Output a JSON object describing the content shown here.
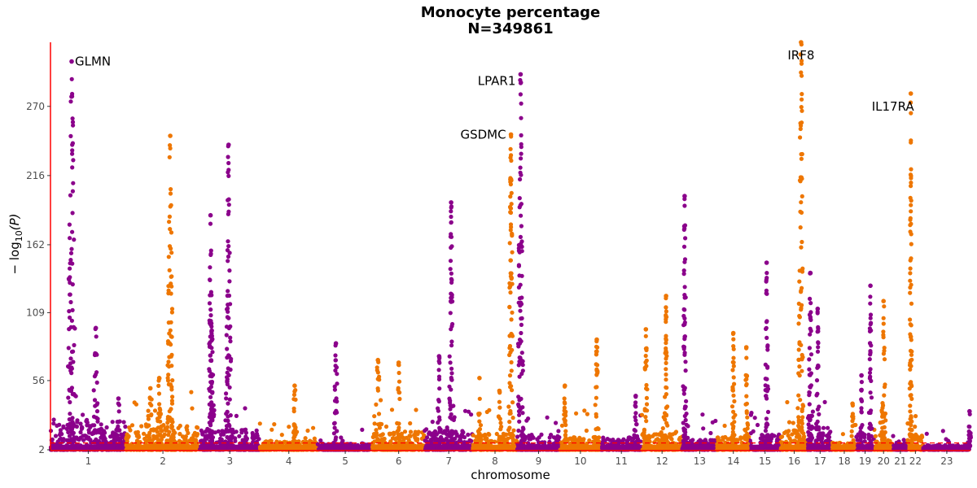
{
  "colors": {
    "odd": "#8b008b",
    "even": "#ee7600",
    "axis": "#ff0000",
    "threshold": "#ff0000"
  },
  "chart_data": {
    "type": "scatter",
    "subtype": "manhattan",
    "title": "Monocyte percentage",
    "subtitle": "N=349861",
    "xlabel": "chromosome",
    "ylabel_prefix": "− log",
    "ylabel_sub": "10",
    "ylabel_suffix": "(P)",
    "ylim": [
      2,
      320
    ],
    "yticks": [
      2,
      56,
      109,
      162,
      216,
      270
    ],
    "threshold": 7.3,
    "grid": false,
    "chromosomes": [
      {
        "label": "1",
        "length": 249,
        "baseline": 26,
        "noise_max": 34
      },
      {
        "label": "2",
        "length": 243,
        "baseline": 22,
        "noise_max": 48
      },
      {
        "label": "3",
        "length": 198,
        "baseline": 18,
        "noise_max": 35
      },
      {
        "label": "4",
        "length": 191,
        "baseline": 9,
        "noise_max": 28
      },
      {
        "label": "5",
        "length": 181,
        "baseline": 7,
        "noise_max": 20
      },
      {
        "label": "6",
        "length": 171,
        "baseline": 16,
        "noise_max": 38
      },
      {
        "label": "7",
        "length": 159,
        "baseline": 18,
        "noise_max": 40
      },
      {
        "label": "8",
        "length": 146,
        "baseline": 15,
        "noise_max": 35
      },
      {
        "label": "9",
        "length": 141,
        "baseline": 14,
        "noise_max": 30
      },
      {
        "label": "10",
        "length": 135,
        "baseline": 12,
        "noise_max": 34
      },
      {
        "label": "11",
        "length": 135,
        "baseline": 12,
        "noise_max": 30
      },
      {
        "label": "12",
        "length": 133,
        "baseline": 16,
        "noise_max": 36
      },
      {
        "label": "13",
        "length": 115,
        "baseline": 10,
        "noise_max": 30
      },
      {
        "label": "14",
        "length": 107,
        "baseline": 12,
        "noise_max": 30
      },
      {
        "label": "15",
        "length": 102,
        "baseline": 14,
        "noise_max": 32
      },
      {
        "label": "16",
        "length": 90,
        "baseline": 18,
        "noise_max": 40
      },
      {
        "label": "17",
        "length": 81,
        "baseline": 20,
        "noise_max": 45
      },
      {
        "label": "18",
        "length": 78,
        "baseline": 8,
        "noise_max": 24
      },
      {
        "label": "19",
        "length": 59,
        "baseline": 14,
        "noise_max": 38
      },
      {
        "label": "20",
        "length": 63,
        "baseline": 16,
        "noise_max": 40
      },
      {
        "label": "21",
        "length": 48,
        "baseline": 8,
        "noise_max": 18
      },
      {
        "label": "22",
        "length": 51,
        "baseline": 14,
        "noise_max": 30
      },
      {
        "label": "23",
        "length": 156,
        "baseline": 6,
        "noise_max": 18
      }
    ],
    "peaks": [
      {
        "chr": "1",
        "pos": 0.28,
        "top": 305,
        "width": 0.018
      },
      {
        "chr": "1",
        "pos": 0.6,
        "top": 97,
        "width": 0.012
      },
      {
        "chr": "1",
        "pos": 0.9,
        "top": 42,
        "width": 0.01
      },
      {
        "chr": "2",
        "pos": 0.33,
        "top": 50,
        "width": 0.02
      },
      {
        "chr": "2",
        "pos": 0.6,
        "top": 247,
        "width": 0.012
      },
      {
        "chr": "2",
        "pos": 0.45,
        "top": 58,
        "width": 0.01
      },
      {
        "chr": "3",
        "pos": 0.18,
        "top": 185,
        "width": 0.008
      },
      {
        "chr": "3",
        "pos": 0.2,
        "top": 95,
        "width": 0.012
      },
      {
        "chr": "3",
        "pos": 0.48,
        "top": 240,
        "width": 0.014
      },
      {
        "chr": "4",
        "pos": 0.6,
        "top": 52,
        "width": 0.015
      },
      {
        "chr": "5",
        "pos": 0.33,
        "top": 85,
        "width": 0.01
      },
      {
        "chr": "6",
        "pos": 0.1,
        "top": 72,
        "width": 0.03
      },
      {
        "chr": "6",
        "pos": 0.5,
        "top": 70,
        "width": 0.01
      },
      {
        "chr": "7",
        "pos": 0.3,
        "top": 75,
        "width": 0.01
      },
      {
        "chr": "7",
        "pos": 0.55,
        "top": 195,
        "width": 0.012
      },
      {
        "chr": "8",
        "pos": 0.15,
        "top": 58,
        "width": 0.01
      },
      {
        "chr": "8",
        "pos": 0.6,
        "top": 48,
        "width": 0.01
      },
      {
        "chr": "8",
        "pos": 0.86,
        "top": 248,
        "width": 0.014
      },
      {
        "chr": "9",
        "pos": 0.08,
        "top": 295,
        "width": 0.018
      },
      {
        "chr": "10",
        "pos": 0.12,
        "top": 52,
        "width": 0.01
      },
      {
        "chr": "10",
        "pos": 0.9,
        "top": 88,
        "width": 0.012
      },
      {
        "chr": "11",
        "pos": 0.85,
        "top": 44,
        "width": 0.01
      },
      {
        "chr": "12",
        "pos": 0.1,
        "top": 96,
        "width": 0.012
      },
      {
        "chr": "12",
        "pos": 0.6,
        "top": 122,
        "width": 0.008
      },
      {
        "chr": "13",
        "pos": 0.07,
        "top": 200,
        "width": 0.012
      },
      {
        "chr": "14",
        "pos": 0.5,
        "top": 93,
        "width": 0.008
      },
      {
        "chr": "14",
        "pos": 0.9,
        "top": 82,
        "width": 0.012
      },
      {
        "chr": "15",
        "pos": 0.55,
        "top": 148,
        "width": 0.014
      },
      {
        "chr": "16",
        "pos": 0.75,
        "top": 320,
        "width": 0.03
      },
      {
        "chr": "17",
        "pos": 0.1,
        "top": 140,
        "width": 0.02
      },
      {
        "chr": "17",
        "pos": 0.4,
        "top": 112,
        "width": 0.012
      },
      {
        "chr": "18",
        "pos": 0.85,
        "top": 38,
        "width": 0.012
      },
      {
        "chr": "19",
        "pos": 0.3,
        "top": 60,
        "width": 0.014
      },
      {
        "chr": "19",
        "pos": 0.8,
        "top": 130,
        "width": 0.016
      },
      {
        "chr": "20",
        "pos": 0.5,
        "top": 118,
        "width": 0.03
      },
      {
        "chr": "22",
        "pos": 0.2,
        "top": 280,
        "width": 0.01
      },
      {
        "chr": "23",
        "pos": 0.98,
        "top": 32,
        "width": 0.008
      }
    ],
    "annotations": [
      {
        "label": "GLMN",
        "chr": "1",
        "pos": 0.28,
        "value": 305
      },
      {
        "label": "GSDMC",
        "chr": "8",
        "pos": 0.86,
        "value": 248
      },
      {
        "label": "LPAR1",
        "chr": "9",
        "pos": 0.08,
        "value": 290
      },
      {
        "label": "IRF8",
        "chr": "16",
        "pos": 0.75,
        "value": 310
      },
      {
        "label": "IL17RA",
        "chr": "22",
        "pos": 0.2,
        "value": 270
      }
    ]
  }
}
